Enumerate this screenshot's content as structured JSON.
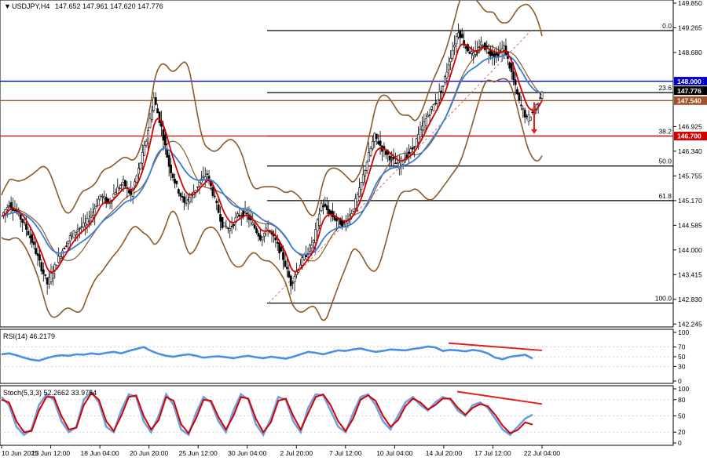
{
  "header": {
    "symbol": "USDJPY,H4",
    "ohlc": "147.652 147.961 147.620 147.776"
  },
  "colors": {
    "bollinger": "#8B5A2B",
    "ma_fast": "#d40000",
    "ma_slow": "#3a7bd5",
    "level_blue": "#0000c0",
    "level_red": "#d40000",
    "level_brown": "#a0522d",
    "fib": "#000000",
    "rsi": "#4a90e2",
    "stoch_main": "#6ea0e0",
    "stoch_signal": "#d40000",
    "divergence": "#e02020"
  },
  "chart_data": [
    {
      "type": "candlestick",
      "title": "USDJPY,H4",
      "ylim": [
        142.25,
        149.85
      ],
      "y_ticks": [
        "149.850",
        "149.265",
        "148.680",
        "148.000",
        "147.776",
        "147.540",
        "146.925",
        "146.700",
        "146.340",
        "145.755",
        "145.170",
        "144.585",
        "144.000",
        "143.415",
        "142.830",
        "142.245"
      ],
      "x_ticks": [
        "10 Jun 2025",
        "13 Jun 12:00",
        "18 Jun 04:00",
        "20 Jun 20:00",
        "25 Jun 12:00",
        "30 Jun 04:00",
        "2 Jul 20:00",
        "7 Jul 12:00",
        "10 Jul 04:00",
        "14 Jul 20:00",
        "17 Jul 12:00",
        "22 Jul 04:00"
      ],
      "close_path": [
        144.8,
        145.1,
        144.9,
        144.6,
        144.2,
        143.7,
        143.2,
        143.6,
        144.0,
        144.3,
        144.5,
        144.6,
        144.9,
        145.3,
        145.1,
        145.4,
        145.6,
        145.3,
        145.9,
        146.6,
        147.6,
        146.9,
        146.0,
        145.5,
        145.1,
        145.3,
        145.6,
        145.8,
        145.2,
        144.6,
        144.5,
        144.8,
        144.9,
        144.6,
        144.3,
        144.5,
        144.2,
        143.8,
        143.2,
        143.6,
        143.9,
        144.2,
        145.1,
        144.9,
        144.7,
        144.6,
        144.9,
        145.4,
        146.1,
        146.7,
        146.4,
        146.2,
        146.0,
        146.2,
        146.4,
        146.8,
        147.2,
        147.5,
        147.9,
        148.6,
        149.2,
        148.8,
        148.6,
        148.9,
        148.7,
        148.6,
        148.8,
        148.2,
        147.5,
        147.1,
        147.3,
        147.78
      ],
      "levels": [
        {
          "price": 148.0,
          "label": "148.000",
          "color": "#0000c0"
        },
        {
          "price": 147.54,
          "label": "147.540",
          "color": "#a0522d"
        },
        {
          "price": 146.7,
          "label": "146.700",
          "color": "#d40000"
        },
        {
          "price": 147.776,
          "label": "147.776",
          "color": "#000000"
        }
      ],
      "fibonacci": [
        {
          "level": "0.0",
          "price": 149.2
        },
        {
          "level": "23.6",
          "price": 147.73
        },
        {
          "level": "38.2",
          "price": 146.7
        },
        {
          "level": "50.0",
          "price": 145.99
        },
        {
          "level": "61.8",
          "price": 145.17
        },
        {
          "level": "100.0",
          "price": 142.74
        }
      ]
    },
    {
      "type": "line",
      "title": "RSI(14) 46.2179",
      "ylim": [
        0,
        100
      ],
      "y_ticks": [
        "100",
        "70",
        "50",
        "30",
        "0"
      ],
      "values": [
        55,
        57,
        53,
        48,
        44,
        42,
        47,
        51,
        53,
        52,
        55,
        54,
        57,
        55,
        58,
        60,
        57,
        62,
        66,
        70,
        62,
        56,
        52,
        50,
        53,
        55,
        52,
        48,
        50,
        51,
        49,
        47,
        50,
        52,
        49,
        47,
        50,
        48,
        46,
        50,
        55,
        60,
        58,
        55,
        59,
        63,
        62,
        65,
        67,
        63,
        60,
        62,
        65,
        64,
        63,
        66,
        68,
        71,
        69,
        62,
        64,
        63,
        61,
        64,
        62,
        57,
        48,
        45,
        50,
        52,
        54,
        46.2
      ]
    },
    {
      "type": "line",
      "title": "Stoch(5,3,3) 52.2662 33.9754",
      "ylim": [
        0,
        100
      ],
      "y_ticks": [
        "100",
        "80",
        "50",
        "20",
        "0"
      ],
      "series": [
        {
          "name": "52.2662",
          "values": [
            85,
            70,
            30,
            15,
            25,
            70,
            90,
            80,
            40,
            20,
            30,
            80,
            95,
            75,
            30,
            20,
            60,
            90,
            85,
            40,
            20,
            50,
            90,
            70,
            25,
            15,
            55,
            85,
            75,
            40,
            20,
            60,
            90,
            80,
            35,
            15,
            45,
            85,
            80,
            40,
            20,
            65,
            90,
            88,
            60,
            30,
            20,
            55,
            85,
            90,
            70,
            40,
            25,
            50,
            75,
            85,
            70,
            60,
            75,
            85,
            80,
            60,
            50,
            70,
            75,
            65,
            45,
            25,
            15,
            30,
            45,
            52.3
          ]
        },
        {
          "name": "33.9754",
          "values": [
            80,
            75,
            40,
            20,
            22,
            60,
            85,
            85,
            50,
            25,
            28,
            70,
            92,
            80,
            40,
            22,
            50,
            85,
            88,
            50,
            25,
            42,
            85,
            78,
            35,
            18,
            45,
            80,
            78,
            48,
            25,
            50,
            85,
            82,
            45,
            20,
            38,
            78,
            82,
            50,
            25,
            55,
            85,
            90,
            70,
            40,
            22,
            45,
            80,
            88,
            78,
            50,
            30,
            42,
            68,
            82,
            75,
            62,
            70,
            82,
            82,
            65,
            52,
            65,
            72,
            68,
            52,
            32,
            18,
            24,
            38,
            34.0
          ]
        }
      ]
    }
  ]
}
